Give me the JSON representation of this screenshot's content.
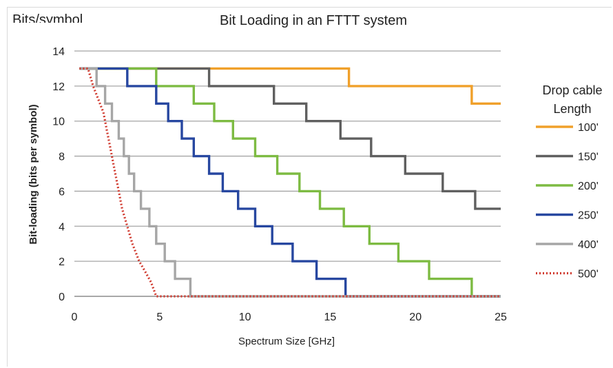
{
  "chart_data": {
    "type": "line",
    "title": "Bit Loading in an FTTT system",
    "header_fragment": "Bits/symbol",
    "xlabel": "Spectrum Size [GHz]",
    "ylabel": "Bit-loading (bits per symbol)",
    "xlim": [
      0,
      25
    ],
    "ylim": [
      0,
      14
    ],
    "xticks": [
      "0",
      "5",
      "10",
      "15",
      "20",
      "25"
    ],
    "yticks": [
      "0",
      "2",
      "4",
      "6",
      "8",
      "10",
      "12",
      "14"
    ],
    "grid": "horizontal",
    "legend": {
      "title": "Drop cable Length",
      "title_lines": [
        "Drop cable",
        "Length"
      ],
      "position": "right"
    },
    "series": [
      {
        "name": "100'",
        "color": "#f0a02a",
        "dash": "solid",
        "x": [
          0.3,
          16.1,
          16.1,
          23.3,
          23.3,
          25.0
        ],
        "y": [
          13,
          13,
          12,
          12,
          11,
          11
        ]
      },
      {
        "name": "150'",
        "color": "#5f5f5f",
        "dash": "solid",
        "x": [
          0.3,
          7.9,
          7.9,
          11.7,
          11.7,
          13.6,
          13.6,
          15.6,
          15.6,
          17.4,
          17.4,
          19.4,
          19.4,
          21.6,
          21.6,
          23.5,
          23.5,
          25.0
        ],
        "y": [
          13,
          13,
          12,
          12,
          11,
          11,
          10,
          10,
          9,
          9,
          8,
          8,
          7,
          7,
          6,
          6,
          5,
          5
        ]
      },
      {
        "name": "200'",
        "color": "#7dbb42",
        "dash": "solid",
        "x": [
          0.3,
          4.8,
          4.8,
          7.0,
          7.0,
          8.2,
          8.2,
          9.3,
          9.3,
          10.6,
          10.6,
          11.9,
          11.9,
          13.2,
          13.2,
          14.4,
          14.4,
          15.8,
          15.8,
          17.3,
          17.3,
          19.0,
          19.0,
          20.8,
          20.8,
          23.3,
          23.3,
          25.0
        ],
        "y": [
          13,
          13,
          12,
          12,
          11,
          11,
          10,
          10,
          9,
          9,
          8,
          8,
          7,
          7,
          6,
          6,
          5,
          5,
          4,
          4,
          3,
          3,
          2,
          2,
          1,
          1,
          0,
          0
        ]
      },
      {
        "name": "250'",
        "color": "#2747a0",
        "dash": "solid",
        "x": [
          0.3,
          3.1,
          3.1,
          4.8,
          4.8,
          5.5,
          5.5,
          6.3,
          6.3,
          7.0,
          7.0,
          7.9,
          7.9,
          8.7,
          8.7,
          9.6,
          9.6,
          10.6,
          10.6,
          11.6,
          11.6,
          12.8,
          12.8,
          14.2,
          14.2,
          15.9,
          15.9,
          25.0
        ],
        "y": [
          13,
          13,
          12,
          12,
          11,
          11,
          10,
          10,
          9,
          9,
          8,
          8,
          7,
          7,
          6,
          6,
          5,
          5,
          4,
          4,
          3,
          3,
          2,
          2,
          1,
          1,
          0,
          0
        ]
      },
      {
        "name": "400'",
        "color": "#a6a6a6",
        "dash": "solid",
        "x": [
          0.3,
          1.3,
          1.3,
          1.8,
          1.8,
          2.2,
          2.2,
          2.6,
          2.6,
          2.9,
          2.9,
          3.2,
          3.2,
          3.5,
          3.5,
          3.9,
          3.9,
          4.4,
          4.4,
          4.8,
          4.8,
          5.3,
          5.3,
          5.9,
          5.9,
          6.8,
          6.8,
          25.0
        ],
        "y": [
          13,
          13,
          12,
          12,
          11,
          11,
          10,
          10,
          9,
          9,
          8,
          8,
          7,
          7,
          6,
          6,
          5,
          5,
          4,
          4,
          3,
          3,
          2,
          2,
          1,
          1,
          0,
          0
        ]
      },
      {
        "name": "500'",
        "color": "#d0392e",
        "dash": "dotted",
        "x": [
          0.3,
          0.8,
          1.1,
          1.3,
          1.5,
          1.7,
          1.8,
          1.9,
          2.0,
          2.1,
          2.2,
          2.4,
          2.6,
          2.8,
          3.1,
          3.4,
          3.8,
          4.1,
          4.5,
          4.8,
          25.0
        ],
        "y": [
          13,
          13,
          12,
          11.5,
          11,
          10.5,
          10,
          9.5,
          9,
          8.5,
          8,
          7,
          6,
          5,
          4,
          3,
          2,
          1.5,
          0.8,
          0,
          0
        ]
      }
    ]
  }
}
